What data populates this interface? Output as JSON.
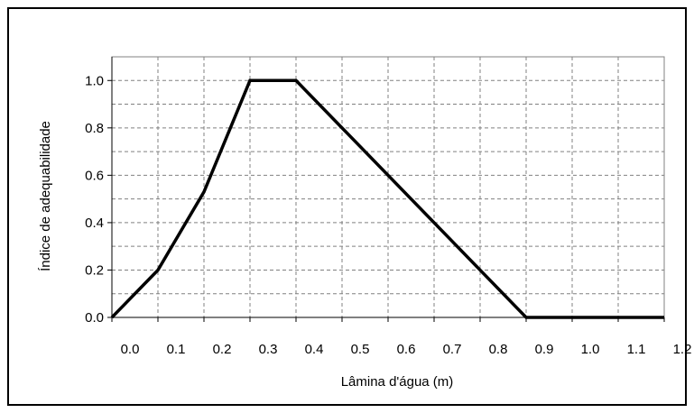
{
  "chart_data": {
    "type": "line",
    "xlabel": "Lâmina d'água (m)",
    "ylabel": "Índice de adequabilidade",
    "xlim": [
      0,
      1.2
    ],
    "ylim": [
      0,
      1.1
    ],
    "x_ticks": [
      "0.0",
      "0.1",
      "0.2",
      "0.3",
      "0.4",
      "0.5",
      "0.6",
      "0.7",
      "0.8",
      "0.9",
      "1.0",
      "1.1",
      "1.2"
    ],
    "y_ticks": [
      "0.0",
      "0.2",
      "0.4",
      "0.6",
      "0.8",
      "1.0"
    ],
    "grid": true,
    "series": [
      {
        "color": "#000000",
        "points": [
          {
            "x": 0.0,
            "y": 0.0
          },
          {
            "x": 0.1,
            "y": 0.2
          },
          {
            "x": 0.2,
            "y": 0.53
          },
          {
            "x": 0.3,
            "y": 1.0
          },
          {
            "x": 0.4,
            "y": 1.0
          },
          {
            "x": 0.9,
            "y": 0.0
          },
          {
            "x": 1.2,
            "y": 0.0
          }
        ]
      }
    ]
  }
}
